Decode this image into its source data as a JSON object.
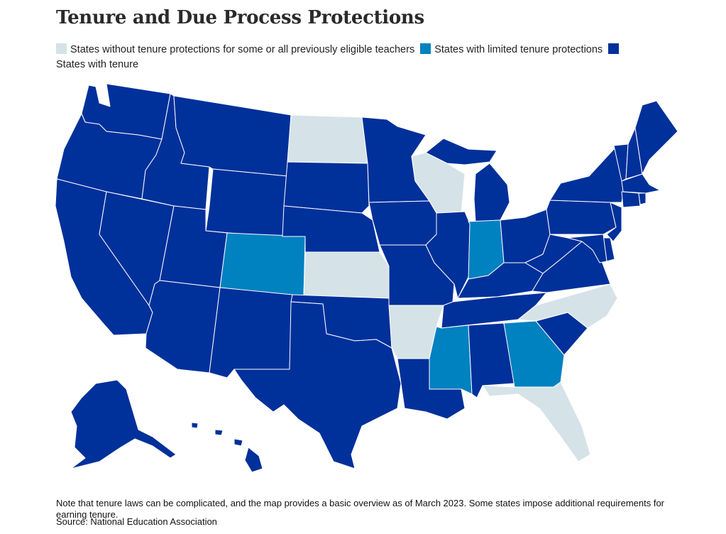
{
  "title": "Tenure and Due Process Protections",
  "legend": [
    {
      "key": "none",
      "label": "States without tenure protections for some or all previously eligible teachers",
      "color": "#d5e3e8"
    },
    {
      "key": "limited",
      "label": "States with limited tenure protections",
      "color": "#0081c0"
    },
    {
      "key": "tenure",
      "label": "States with tenure",
      "color": "#00309a"
    }
  ],
  "state_categories": {
    "none": [
      "North Dakota",
      "Wisconsin",
      "Kansas",
      "Arkansas",
      "North Carolina",
      "Florida"
    ],
    "limited": [
      "Colorado",
      "Indiana",
      "Mississippi",
      "Georgia"
    ],
    "tenure": [
      "Washington",
      "Oregon",
      "California",
      "Nevada",
      "Idaho",
      "Montana",
      "Wyoming",
      "Utah",
      "Arizona",
      "New Mexico",
      "South Dakota",
      "Nebraska",
      "Oklahoma",
      "Texas",
      "Minnesota",
      "Iowa",
      "Missouri",
      "Louisiana",
      "Illinois",
      "Michigan",
      "Ohio",
      "Kentucky",
      "Tennessee",
      "Alabama",
      "South Carolina",
      "West Virginia",
      "Virginia",
      "Pennsylvania",
      "New York",
      "New Jersey",
      "Delaware",
      "Maryland",
      "Connecticut",
      "Rhode Island",
      "Massachusetts",
      "Vermont",
      "New Hampshire",
      "Maine",
      "Alaska",
      "Hawaii"
    ]
  },
  "note": "Note that tenure laws can be complicated, and the map provides a basic overview as of March 2023. Some states impose additional requirements for earning tenure.",
  "source": "Source: National Education Association"
}
